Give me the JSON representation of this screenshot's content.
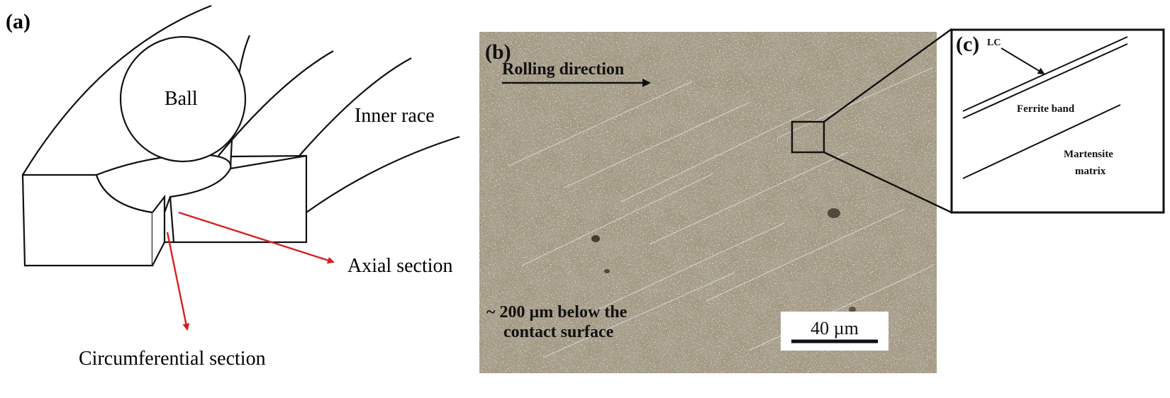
{
  "panel_a": {
    "label": "(a)",
    "ball_label": "Ball",
    "inner_race_label": "Inner race",
    "axial_section_label": "Axial section",
    "circumferential_section_label": "Circumferential section",
    "arrow_color": "#d42020"
  },
  "panel_b": {
    "label": "(b)",
    "rolling_direction_label": "Rolling direction",
    "depth_note_line1": "~ 200 µm below the",
    "depth_note_line2": "contact surface",
    "scale_bar_label": "40 µm"
  },
  "panel_c": {
    "label": "(c)",
    "lc_label": "LC",
    "ferrite_band_label": "Ferrite band",
    "martensite_label_line1": "Martensite",
    "martensite_label_line2": "matrix"
  }
}
